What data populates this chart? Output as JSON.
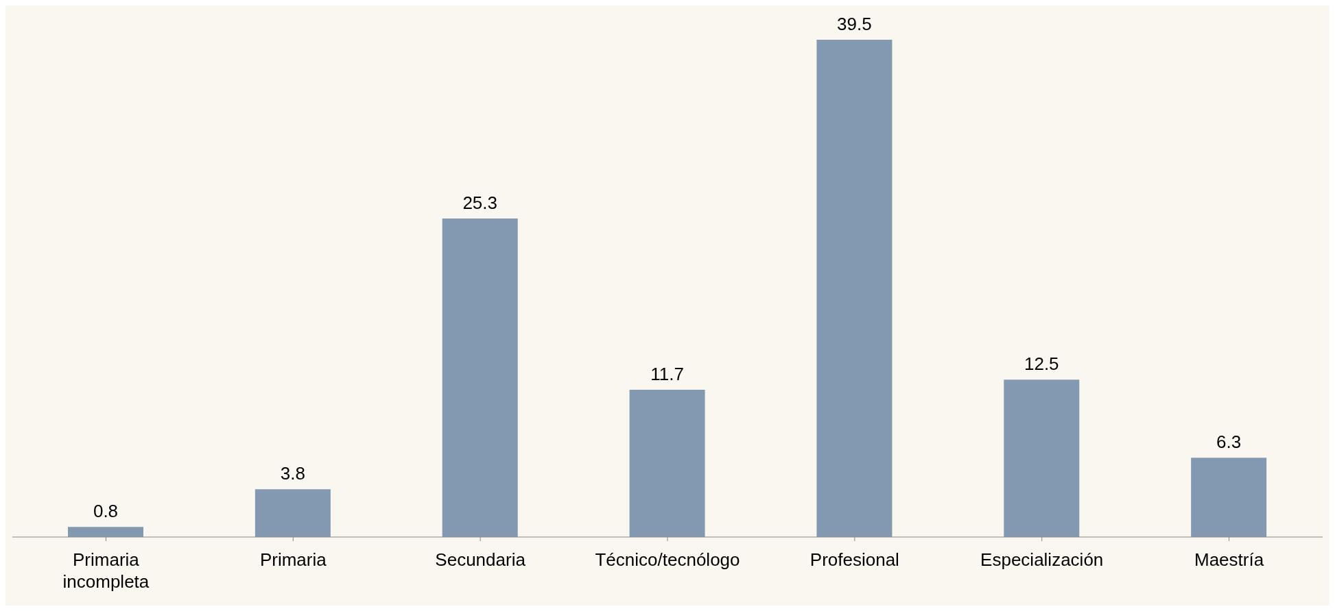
{
  "chart_data": {
    "type": "bar",
    "categories": [
      "Primaria incompleta",
      "Primaria",
      "Secundaria",
      "Técnico/tecnólogo",
      "Profesional",
      "Especialización",
      "Maestría"
    ],
    "values": [
      0.8,
      3.8,
      25.3,
      11.7,
      39.5,
      12.5,
      6.3
    ],
    "color": "#8399b2",
    "data_labels": true,
    "grid": false,
    "tick_labels": "x"
  }
}
